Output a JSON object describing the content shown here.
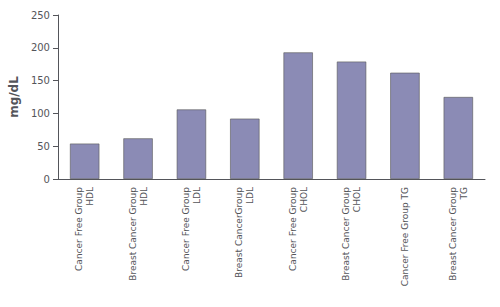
{
  "chart_data": {
    "type": "bar",
    "categories": [
      "Cancer Free Group\nHDL",
      "Breast Cancer Group\nHDL",
      "Cancer Free Group\nLDL",
      "Breast CancerGroup\nLDL",
      "Cancer Free Group\nCHOL",
      "Breast Cancer Group\nCHOL",
      "Cancer Free Group TG",
      "Breast Cancer Group\nTG"
    ],
    "values": [
      54,
      62,
      106,
      92,
      193,
      179,
      162,
      125
    ],
    "color": "#8b8bb5",
    "ylabel": "mg/dL",
    "ylim": [
      0,
      250
    ],
    "yticks": [
      0,
      50,
      100,
      150,
      200,
      250
    ],
    "grid": false
  }
}
